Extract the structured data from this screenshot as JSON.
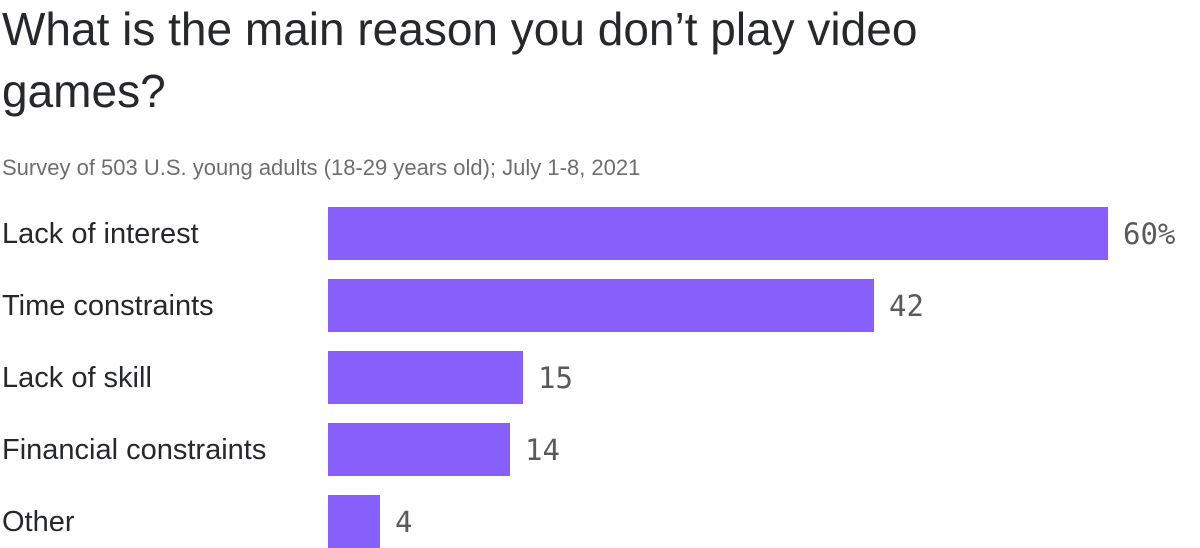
{
  "chart_data": {
    "type": "bar",
    "orientation": "horizontal",
    "title": "What is the main reason you don’t play video games?",
    "subtitle": "Survey of 503 U.S. young adults (18-29 years old); July 1-8, 2021",
    "categories": [
      "Lack of interest",
      "Time constraints",
      "Lack of skill",
      "Financial constraints",
      "Other"
    ],
    "values": [
      60,
      42,
      15,
      14,
      4
    ],
    "value_labels": [
      "60%",
      "42",
      "15",
      "14",
      "4"
    ],
    "unit": "percent of respondents",
    "xlim": [
      0,
      60
    ],
    "grid": false,
    "legend": false,
    "colors": {
      "bar": "#875FFB",
      "title_text": "#26282b",
      "category_text": "#26282b",
      "value_text": "#5a5a5a",
      "subtitle_text": "#6e6e6e",
      "background": "#ffffff"
    }
  }
}
